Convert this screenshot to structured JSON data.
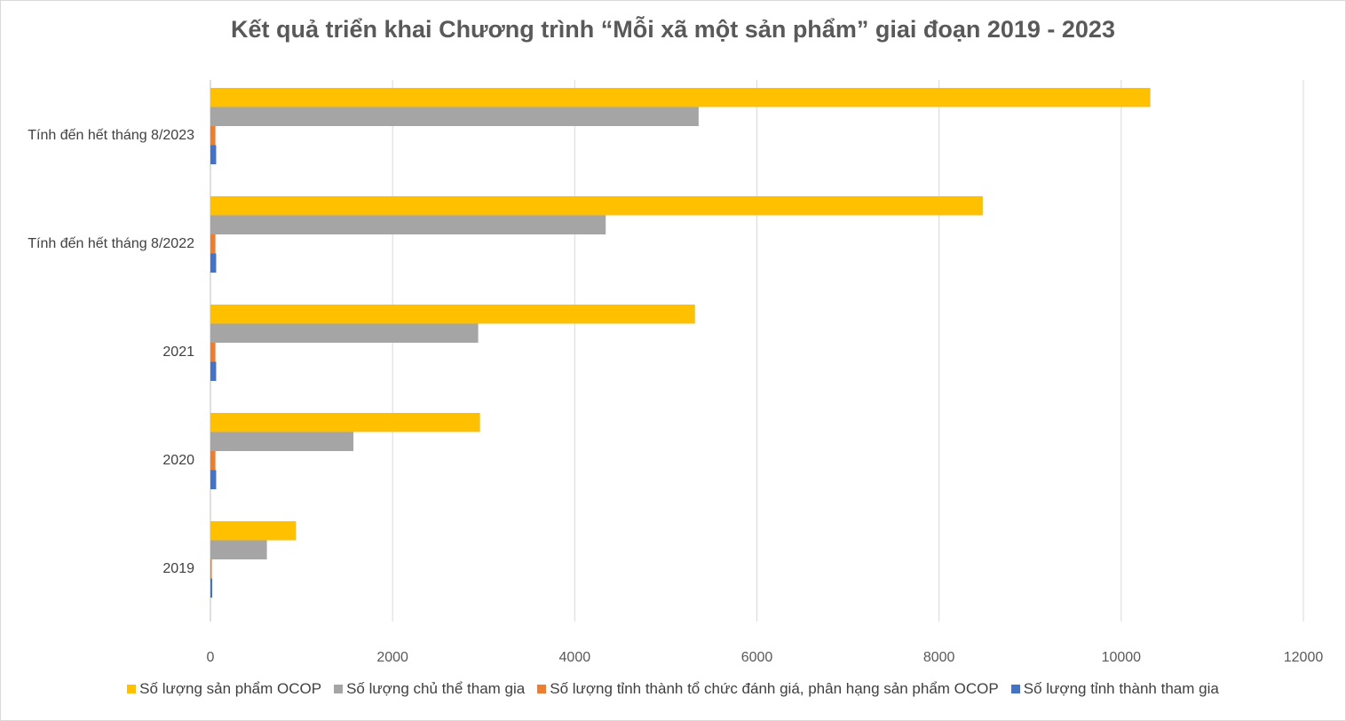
{
  "chart_data": {
    "type": "bar",
    "orientation": "horizontal",
    "title": "Kết quả triển khai Chương trình “Mỗi xã một sản phẩm” giai đoạn 2019 - 2023",
    "categories": [
      "2019",
      "2020",
      "2021",
      "Tính đến hết tháng 8/2022",
      "Tính đến hết tháng 8/2023"
    ],
    "series": [
      {
        "name": "Số lượng sản phẩm OCOP",
        "color": "#ffc000",
        "values": [
          940,
          2960,
          5320,
          8480,
          10320
        ]
      },
      {
        "name": "Số lượng chủ thể tham gia",
        "color": "#a5a5a5",
        "values": [
          620,
          1570,
          2940,
          4340,
          5360
        ]
      },
      {
        "name": "Số lượng tỉnh thành tổ chức đánh giá, phân hạng sản phẩm OCOP",
        "color": "#ed7d31",
        "values": [
          15,
          55,
          55,
          55,
          55
        ]
      },
      {
        "name": "Số lượng tỉnh thành tham gia",
        "color": "#4472c4",
        "values": [
          20,
          63,
          63,
          63,
          63
        ]
      }
    ],
    "xlim": [
      0,
      12000
    ],
    "xticks": [
      "0",
      "2000",
      "4000",
      "6000",
      "8000",
      "10000",
      "12000"
    ],
    "grid": true,
    "legend": "bottom"
  }
}
